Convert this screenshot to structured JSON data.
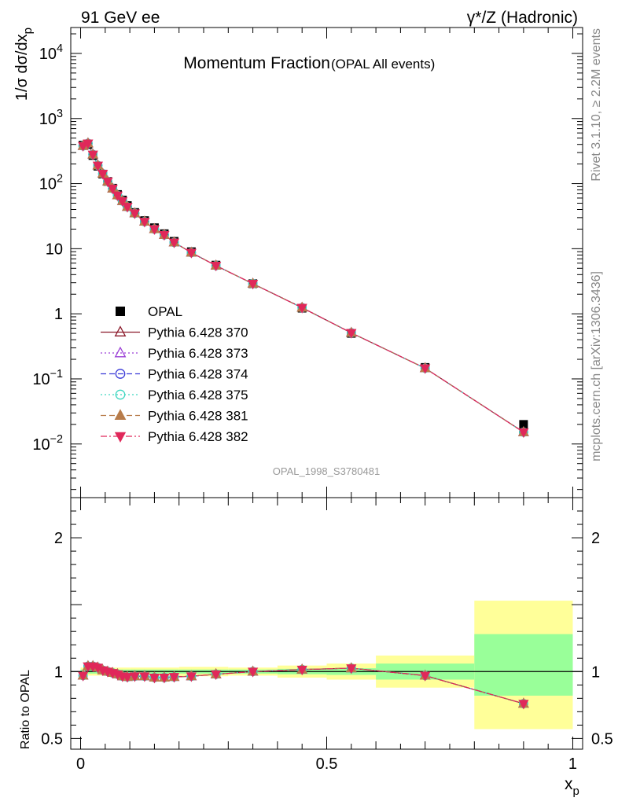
{
  "header": {
    "left_label": "91 GeV ee",
    "right_label": "γ*/Z (Hadronic)"
  },
  "side_labels": {
    "rivet": "Rivet 3.1.10, ≥ 2.2M events",
    "mcplots": "mcplots.cern.ch [arXiv:1306.3436]"
  },
  "colors": {
    "OPAL": "#000000",
    "p370": "#8b1a2b",
    "p373": "#9b3fd6",
    "p374": "#3a3ad8",
    "p375": "#3fd6c0",
    "p381": "#b87c4a",
    "p382": "#e0285a",
    "band_stat": "#99ff99",
    "band_total": "#ffff99"
  },
  "chart_data": [
    {
      "type": "scatter",
      "title": "Momentum Fraction",
      "subtitle": "(OPAL All events)",
      "ylabel": "1/σ dσ/dx_p",
      "watermark": "OPAL_1998_S3780481",
      "yscale": "log",
      "xlim": [
        -0.02,
        1.02
      ],
      "ylim": [
        0.0015,
        25000
      ],
      "yticks": [
        {
          "value": 0.01,
          "label": "10^-2"
        },
        {
          "value": 0.1,
          "label": "10^-1"
        },
        {
          "value": 1,
          "label": "1"
        },
        {
          "value": 10,
          "label": "10"
        },
        {
          "value": 100,
          "label": "10^2"
        },
        {
          "value": 1000,
          "label": "10^3"
        },
        {
          "value": 10000,
          "label": "10^4"
        }
      ],
      "legend_position": "lower-left",
      "x": [
        0.005,
        0.015,
        0.025,
        0.035,
        0.045,
        0.055,
        0.065,
        0.075,
        0.085,
        0.095,
        0.11,
        0.13,
        0.15,
        0.17,
        0.19,
        0.225,
        0.275,
        0.35,
        0.45,
        0.55,
        0.7,
        0.9
      ],
      "series": [
        {
          "name": "OPAL",
          "key": "OPAL",
          "marker": "square",
          "line": "none",
          "values": [
            390,
            400,
            270,
            185,
            140,
            108,
            85,
            68,
            56,
            46,
            36,
            27,
            21,
            17,
            13,
            9.0,
            5.6,
            2.9,
            1.22,
            0.5,
            0.15,
            0.02
          ]
        },
        {
          "name": "Pythia 6.428 370",
          "key": "p370",
          "marker": "triangle-up-open",
          "line": "solid",
          "values": [
            380,
            415,
            280,
            190,
            142,
            108,
            84,
            66,
            54,
            44,
            35,
            26,
            20,
            16.3,
            12.5,
            8.7,
            5.5,
            2.9,
            1.24,
            0.51,
            0.146,
            0.0152
          ]
        },
        {
          "name": "Pythia 6.428 373",
          "key": "p373",
          "marker": "triangle-up-open",
          "line": "dotted",
          "values": [
            380,
            415,
            280,
            190,
            142,
            108,
            84,
            66,
            54,
            44,
            35,
            26,
            20,
            16.3,
            12.5,
            8.7,
            5.5,
            2.9,
            1.24,
            0.51,
            0.146,
            0.0152
          ]
        },
        {
          "name": "Pythia 6.428 374",
          "key": "p374",
          "marker": "circle-open",
          "line": "dashed",
          "values": [
            380,
            415,
            280,
            190,
            142,
            108,
            84,
            66,
            54,
            44,
            35,
            26,
            20,
            16.3,
            12.5,
            8.7,
            5.5,
            2.9,
            1.24,
            0.51,
            0.146,
            0.0152
          ]
        },
        {
          "name": "Pythia 6.428 375",
          "key": "p375",
          "marker": "circle-open",
          "line": "dotted",
          "values": [
            380,
            415,
            280,
            190,
            142,
            108,
            84,
            66,
            54,
            44,
            35,
            26,
            20,
            16.3,
            12.5,
            8.7,
            5.5,
            2.9,
            1.24,
            0.51,
            0.146,
            0.0152
          ]
        },
        {
          "name": "Pythia 6.428 381",
          "key": "p381",
          "marker": "triangle-up-filled",
          "line": "dashed",
          "values": [
            380,
            415,
            280,
            190,
            142,
            108,
            84,
            66,
            54,
            44,
            35,
            26,
            20,
            16.3,
            12.5,
            8.7,
            5.5,
            2.9,
            1.24,
            0.51,
            0.146,
            0.0152
          ]
        },
        {
          "name": "Pythia 6.428 382",
          "key": "p382",
          "marker": "triangle-down-filled",
          "line": "dashdot",
          "values": [
            380,
            415,
            280,
            190,
            142,
            108,
            84,
            66,
            54,
            44,
            35,
            26,
            20,
            16.3,
            12.5,
            8.7,
            5.5,
            2.9,
            1.24,
            0.51,
            0.146,
            0.0152
          ]
        }
      ]
    },
    {
      "type": "line",
      "ylabel": "Ratio to OPAL",
      "xlabel": "x_p",
      "xlim": [
        -0.02,
        1.02
      ],
      "ylim": [
        0.42,
        2.3
      ],
      "xticks": [
        {
          "value": 0,
          "label": "0"
        },
        {
          "value": 0.5,
          "label": "0.5"
        },
        {
          "value": 1,
          "label": "1"
        }
      ],
      "yticks": [
        {
          "value": 0.5,
          "label": "0.5"
        },
        {
          "value": 1,
          "label": "1"
        },
        {
          "value": 2,
          "label": "2"
        }
      ],
      "reference_line": 1,
      "bands": [
        {
          "x0": 0.0,
          "x1": 0.1,
          "stat": [
            0.985,
            1.015
          ],
          "total": [
            0.97,
            1.03
          ]
        },
        {
          "x0": 0.1,
          "x1": 0.2,
          "stat": [
            0.985,
            1.015
          ],
          "total": [
            0.97,
            1.03
          ]
        },
        {
          "x0": 0.2,
          "x1": 0.3,
          "stat": [
            0.985,
            1.015
          ],
          "total": [
            0.965,
            1.035
          ]
        },
        {
          "x0": 0.3,
          "x1": 0.4,
          "stat": [
            0.985,
            1.015
          ],
          "total": [
            0.97,
            1.03
          ]
        },
        {
          "x0": 0.4,
          "x1": 0.5,
          "stat": [
            0.98,
            1.02
          ],
          "total": [
            0.955,
            1.045
          ]
        },
        {
          "x0": 0.5,
          "x1": 0.6,
          "stat": [
            0.975,
            1.025
          ],
          "total": [
            0.94,
            1.06
          ]
        },
        {
          "x0": 0.6,
          "x1": 0.8,
          "stat": [
            0.94,
            1.06
          ],
          "total": [
            0.88,
            1.12
          ]
        },
        {
          "x0": 0.8,
          "x1": 1.0,
          "stat": [
            0.82,
            1.28
          ],
          "total": [
            0.57,
            1.53
          ]
        }
      ],
      "x": [
        0.005,
        0.015,
        0.025,
        0.035,
        0.045,
        0.055,
        0.065,
        0.075,
        0.085,
        0.095,
        0.11,
        0.13,
        0.15,
        0.17,
        0.19,
        0.225,
        0.275,
        0.35,
        0.45,
        0.55,
        0.7,
        0.9
      ],
      "series": [
        {
          "name": "Pythia 6.428 370",
          "key": "p370",
          "marker": "triangle-up-open",
          "values": [
            0.97,
            1.04,
            1.04,
            1.03,
            1.01,
            1.0,
            0.99,
            0.98,
            0.965,
            0.96,
            0.965,
            0.965,
            0.955,
            0.955,
            0.96,
            0.965,
            0.98,
            1.0,
            1.015,
            1.025,
            0.97,
            0.76
          ]
        },
        {
          "name": "Pythia 6.428 373",
          "key": "p373",
          "marker": "triangle-up-open",
          "values": [
            0.97,
            1.04,
            1.04,
            1.03,
            1.01,
            1.0,
            0.99,
            0.98,
            0.965,
            0.96,
            0.965,
            0.965,
            0.955,
            0.955,
            0.96,
            0.965,
            0.98,
            1.0,
            1.015,
            1.025,
            0.97,
            0.76
          ]
        },
        {
          "name": "Pythia 6.428 374",
          "key": "p374",
          "marker": "circle-open",
          "values": [
            0.97,
            1.04,
            1.04,
            1.03,
            1.01,
            1.0,
            0.99,
            0.98,
            0.965,
            0.96,
            0.965,
            0.965,
            0.955,
            0.955,
            0.96,
            0.965,
            0.98,
            1.0,
            1.015,
            1.025,
            0.97,
            0.76
          ]
        },
        {
          "name": "Pythia 6.428 375",
          "key": "p375",
          "marker": "circle-open",
          "values": [
            0.97,
            1.04,
            1.04,
            1.03,
            1.01,
            1.0,
            0.99,
            0.98,
            0.965,
            0.96,
            0.965,
            0.965,
            0.955,
            0.955,
            0.96,
            0.965,
            0.98,
            1.0,
            1.015,
            1.025,
            0.97,
            0.76
          ]
        },
        {
          "name": "Pythia 6.428 381",
          "key": "p381",
          "marker": "triangle-up-filled",
          "values": [
            0.97,
            1.04,
            1.04,
            1.03,
            1.01,
            1.0,
            0.99,
            0.98,
            0.965,
            0.96,
            0.965,
            0.965,
            0.955,
            0.955,
            0.96,
            0.965,
            0.98,
            1.0,
            1.015,
            1.025,
            0.97,
            0.76
          ]
        },
        {
          "name": "Pythia 6.428 382",
          "key": "p382",
          "marker": "triangle-down-filled",
          "values": [
            0.97,
            1.04,
            1.04,
            1.03,
            1.01,
            1.0,
            0.99,
            0.98,
            0.965,
            0.96,
            0.965,
            0.965,
            0.955,
            0.955,
            0.96,
            0.965,
            0.98,
            1.0,
            1.015,
            1.025,
            0.97,
            0.76
          ]
        }
      ]
    }
  ]
}
